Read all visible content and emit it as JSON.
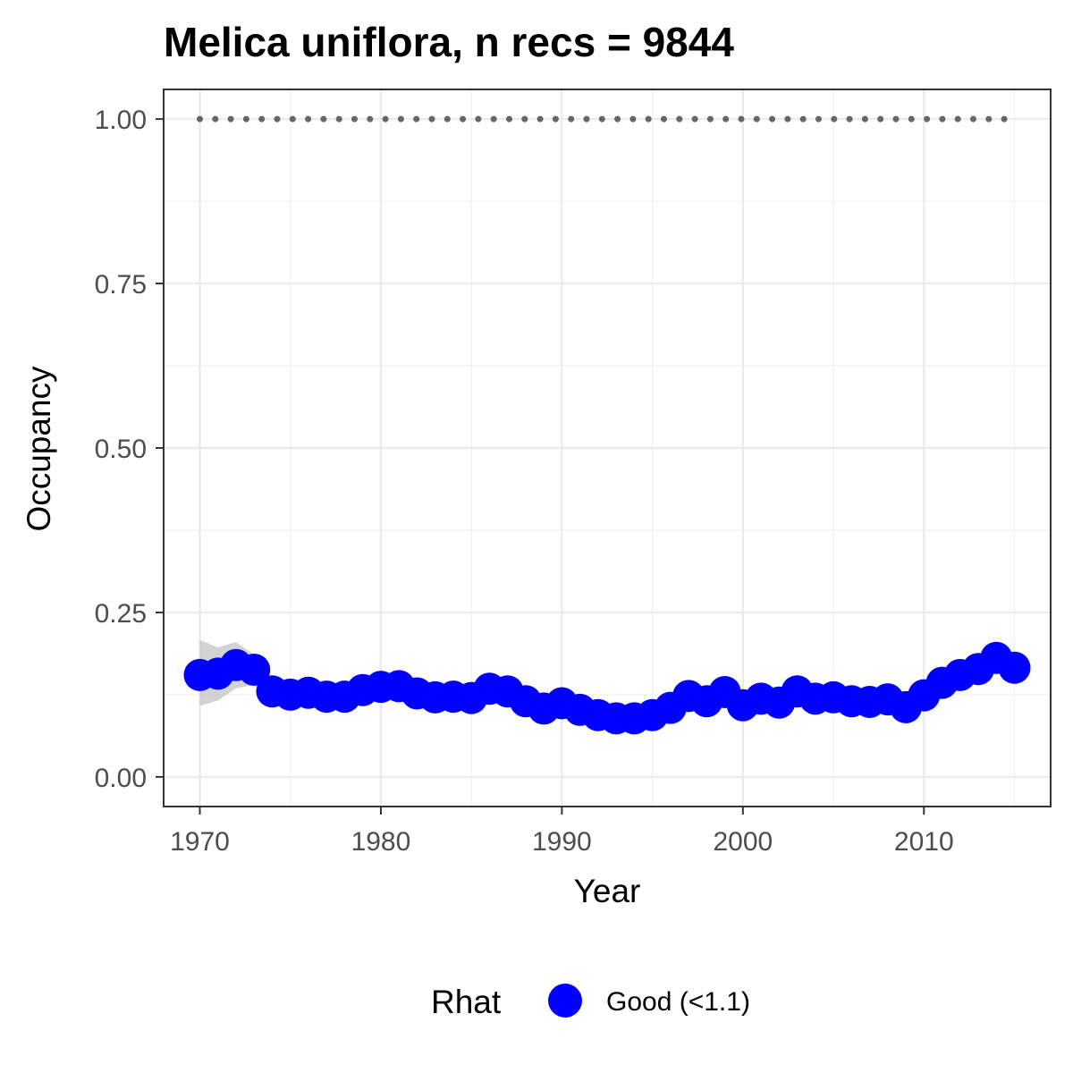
{
  "chart_data": {
    "type": "line",
    "title": "Melica uniflora, n recs = 9844",
    "xlabel": "Year",
    "ylabel": "Occupancy",
    "xlim": [
      1968,
      2017
    ],
    "ylim": [
      -0.045,
      1.045
    ],
    "x_ticks": [
      1970,
      1980,
      1990,
      2000,
      2010
    ],
    "x_tick_labels": [
      "1970",
      "1980",
      "1990",
      "2000",
      "2010"
    ],
    "y_ticks": [
      0,
      0.25,
      0.5,
      0.75,
      1.0
    ],
    "y_tick_labels": [
      "0.00",
      "0.25",
      "0.50",
      "0.75",
      "1.00"
    ],
    "grid": true,
    "x": [
      1970,
      1971,
      1972,
      1973,
      1974,
      1975,
      1976,
      1977,
      1978,
      1979,
      1980,
      1981,
      1982,
      1983,
      1984,
      1985,
      1986,
      1987,
      1988,
      1989,
      1990,
      1991,
      1992,
      1993,
      1994,
      1995,
      1996,
      1997,
      1998,
      1999,
      2000,
      2001,
      2002,
      2003,
      2004,
      2005,
      2006,
      2007,
      2008,
      2009,
      2010,
      2011,
      2012,
      2013,
      2014,
      2015
    ],
    "series": [
      {
        "name": "Good (<1.1)",
        "color": "#0000ff",
        "values": [
          0.155,
          0.157,
          0.17,
          0.163,
          0.13,
          0.125,
          0.128,
          0.122,
          0.122,
          0.132,
          0.137,
          0.138,
          0.127,
          0.121,
          0.122,
          0.12,
          0.134,
          0.13,
          0.115,
          0.104,
          0.112,
          0.102,
          0.094,
          0.089,
          0.089,
          0.094,
          0.105,
          0.123,
          0.115,
          0.129,
          0.109,
          0.119,
          0.113,
          0.13,
          0.119,
          0.121,
          0.115,
          0.114,
          0.118,
          0.106,
          0.124,
          0.143,
          0.155,
          0.164,
          0.181,
          0.166
        ],
        "lower": [
          0.108,
          0.116,
          0.135,
          0.14,
          0.117,
          0.115,
          0.118,
          0.113,
          0.113,
          0.122,
          0.127,
          0.128,
          0.118,
          0.112,
          0.113,
          0.111,
          0.124,
          0.121,
          0.107,
          0.097,
          0.104,
          0.095,
          0.087,
          0.082,
          0.082,
          0.087,
          0.097,
          0.114,
          0.107,
          0.12,
          0.101,
          0.11,
          0.105,
          0.121,
          0.11,
          0.112,
          0.107,
          0.106,
          0.11,
          0.098,
          0.115,
          0.133,
          0.144,
          0.152,
          0.168,
          0.152
        ],
        "upper": [
          0.208,
          0.197,
          0.205,
          0.186,
          0.143,
          0.136,
          0.138,
          0.131,
          0.131,
          0.142,
          0.147,
          0.148,
          0.136,
          0.13,
          0.131,
          0.129,
          0.144,
          0.139,
          0.123,
          0.111,
          0.12,
          0.109,
          0.101,
          0.096,
          0.096,
          0.101,
          0.113,
          0.132,
          0.123,
          0.138,
          0.117,
          0.128,
          0.121,
          0.139,
          0.128,
          0.13,
          0.123,
          0.122,
          0.126,
          0.114,
          0.133,
          0.153,
          0.166,
          0.176,
          0.194,
          0.18
        ]
      }
    ],
    "reference_line": {
      "y": 1.0,
      "style": "dotted",
      "color": "#666666"
    },
    "ribbon_color": "#bfbfbf",
    "legend": {
      "title": "Rhat",
      "position": "bottom",
      "entries": [
        "Good (<1.1)"
      ]
    }
  }
}
